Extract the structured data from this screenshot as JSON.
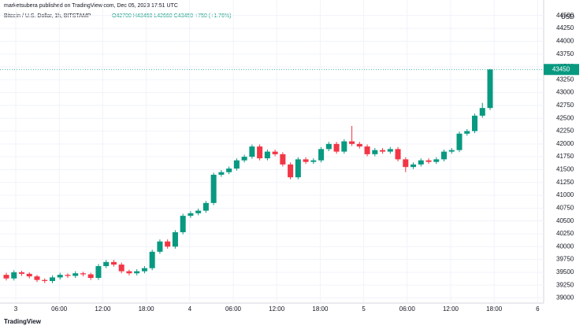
{
  "header": {
    "publisher": "marketsubera published on TradingView.com, Dec 05, 2023 17:51 UTC",
    "symbol": "Bitcoin / U.S. Dollar, 1h, BITSTAMP",
    "legend": "O42700 H43460 L42660 C43450 +750 (+1.76%)"
  },
  "chart_data": {
    "type": "candlestick",
    "currency": "USD",
    "up_color": "#089981",
    "down_color": "#f23645",
    "grid": true,
    "ylim": [
      38900,
      44650
    ],
    "yticks": [
      39000,
      39250,
      39500,
      39750,
      40000,
      40250,
      40500,
      40750,
      41000,
      41250,
      41500,
      41750,
      42000,
      42250,
      42500,
      42750,
      43000,
      43250,
      43500,
      43750,
      44000,
      44250,
      44500
    ],
    "xticks": [
      "3",
      "06:00",
      "12:00",
      "18:00",
      "4",
      "06:00",
      "12:00",
      "18:00",
      "5",
      "06:00",
      "12:00",
      "18:00",
      "6"
    ],
    "open": [
      39450,
      39380,
      39500,
      39470,
      39420,
      39350,
      39330,
      39400,
      39450,
      39430,
      39480,
      39460,
      39390,
      39620,
      39700,
      39650,
      39520,
      39480,
      39520,
      39580,
      39900,
      40100,
      40000,
      40280,
      40600,
      40650,
      40700,
      40850,
      41400,
      41450,
      41520,
      41680,
      41750,
      41950,
      41720,
      41850,
      41800,
      41600,
      41350,
      41700,
      41650,
      41680,
      41900,
      42000,
      41850,
      42050,
      42000,
      41950,
      41800,
      41880,
      41850,
      41900,
      41700,
      41550,
      41600,
      41680,
      41650,
      41700,
      41850,
      41880,
      42200,
      42250,
      42550,
      42700
    ],
    "high": [
      39490,
      39540,
      39530,
      39500,
      39450,
      39380,
      39440,
      39490,
      39480,
      39520,
      39510,
      39490,
      39660,
      39740,
      39740,
      39690,
      39550,
      39560,
      39620,
      39940,
      40140,
      40140,
      40320,
      40640,
      40690,
      40740,
      40890,
      41440,
      41490,
      41560,
      41720,
      41790,
      41990,
      41990,
      41890,
      41890,
      41840,
      41640,
      41740,
      41740,
      41720,
      41940,
      42040,
      42040,
      42090,
      42350,
      42040,
      41990,
      41920,
      41920,
      41940,
      41940,
      41740,
      41640,
      41720,
      41720,
      41740,
      41890,
      41920,
      42240,
      42290,
      42590,
      42800,
      43460
    ],
    "low": [
      39340,
      39340,
      39430,
      39380,
      39310,
      39290,
      39290,
      39360,
      39390,
      39390,
      39420,
      39350,
      39350,
      39580,
      39610,
      39480,
      39440,
      39440,
      39480,
      39540,
      39860,
      39960,
      39960,
      40240,
      40560,
      40610,
      40660,
      40810,
      41360,
      41410,
      41480,
      41640,
      41710,
      41680,
      41680,
      41760,
      41560,
      41310,
      41310,
      41610,
      41610,
      41640,
      41860,
      41810,
      41810,
      41960,
      41910,
      41760,
      41760,
      41810,
      41810,
      41660,
      41450,
      41510,
      41560,
      41610,
      41610,
      41660,
      41810,
      41840,
      42160,
      42210,
      42510,
      42660
    ],
    "close": [
      39380,
      39500,
      39470,
      39420,
      39350,
      39330,
      39400,
      39450,
      39430,
      39480,
      39460,
      39390,
      39620,
      39700,
      39650,
      39520,
      39480,
      39520,
      39580,
      39900,
      40100,
      40000,
      40280,
      40600,
      40650,
      40700,
      40850,
      41400,
      41450,
      41520,
      41680,
      41750,
      41950,
      41720,
      41850,
      41800,
      41600,
      41350,
      41700,
      41650,
      41680,
      41900,
      42000,
      41850,
      42050,
      42000,
      41950,
      41800,
      41880,
      41850,
      41900,
      41700,
      41550,
      41600,
      41680,
      41650,
      41700,
      41850,
      41880,
      42200,
      42250,
      42550,
      42700,
      43450
    ]
  },
  "footer": {
    "logo": "TradingView"
  }
}
